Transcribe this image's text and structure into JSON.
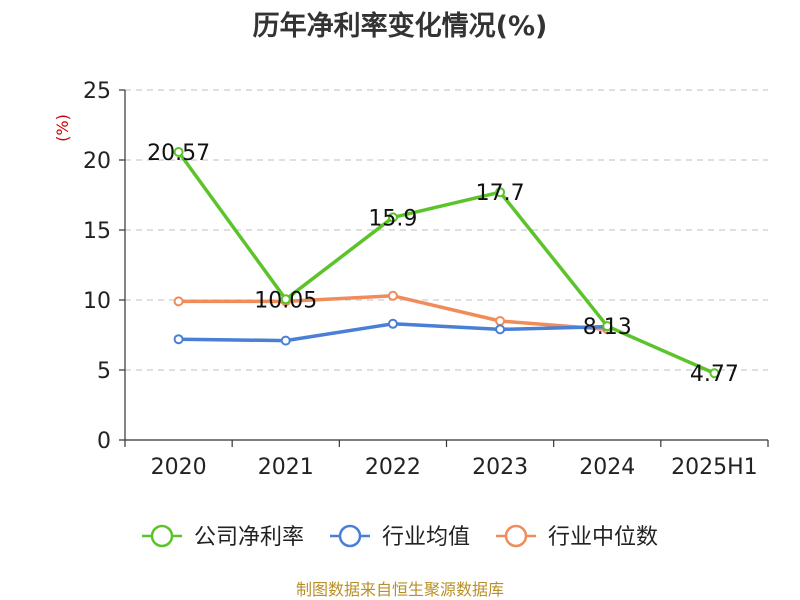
{
  "chart_data": {
    "type": "line",
    "title": "历年净利率变化情况(%)",
    "ylabel": "(%)",
    "xlabel": "",
    "categories": [
      "2020",
      "2021",
      "2022",
      "2023",
      "2024",
      "2025H1"
    ],
    "ylim": [
      0,
      25
    ],
    "yticks": [
      0,
      5,
      10,
      15,
      20,
      25
    ],
    "grid": true,
    "legend_position": "bottom",
    "series": [
      {
        "name": "公司净利率",
        "color": "#5cc32a",
        "values": [
          20.57,
          10.05,
          15.9,
          17.7,
          8.13,
          4.77
        ],
        "labels": [
          "20.57",
          "10.05",
          "15.9",
          "17.7",
          "8.13",
          "4.77"
        ]
      },
      {
        "name": "行业均值",
        "color": "#4a7fd6",
        "values": [
          7.2,
          7.1,
          8.3,
          7.9,
          8.1,
          null
        ]
      },
      {
        "name": "行业中位数",
        "color": "#f08c5a",
        "values": [
          9.9,
          9.9,
          10.3,
          8.5,
          7.9,
          null
        ]
      }
    ]
  },
  "footer": {
    "source": "制图数据来自恒生聚源数据库"
  }
}
